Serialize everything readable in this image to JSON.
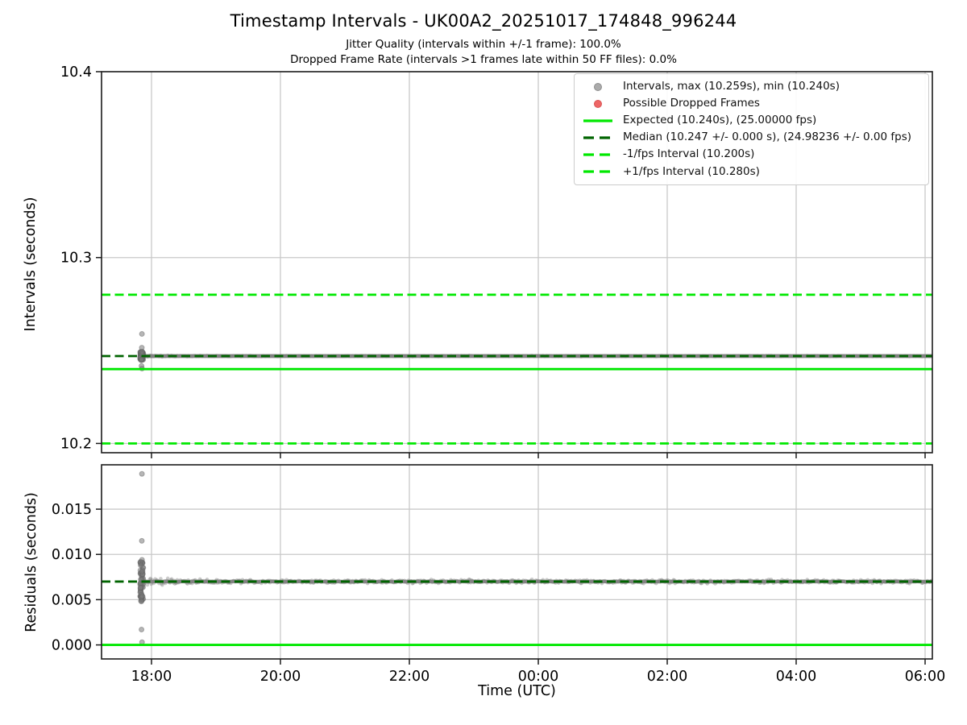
{
  "figure": {
    "title": "Timestamp Intervals - UK00A2_20251017_174848_996244",
    "subtitle1": "Jitter Quality (intervals within +/-1 frame): 100.0%",
    "subtitle2": "Dropped Frame Rate (intervals >1 frames late within 50 FF files): 0.0%"
  },
  "stats": {
    "jitter_quality_pct": 100.0,
    "dropped_frame_rate_pct": 0.0,
    "interval_max_s": 10.259,
    "interval_min_s": 10.24,
    "expected_interval_s": 10.24,
    "expected_fps": 25.0,
    "median_interval_s": 10.247,
    "median_fps": 24.98236,
    "minus_one_fps_interval_s": 10.2,
    "plus_one_fps_interval_s": 10.28
  },
  "colors": {
    "lime": "#00e800",
    "darkgreen": "#006400",
    "scatter_gray": "#808080",
    "dropped_red": "#ee6666",
    "grid": "#c9c9c9",
    "spine": "#1c1c1c",
    "text": "#000000"
  },
  "legend": {
    "entries": [
      {
        "label": "Intervals, max (10.259s), min (10.240s)",
        "style": "dot",
        "color": "#ababab",
        "edge": "#8d8d8d"
      },
      {
        "label": "Possible Dropped Frames",
        "style": "dot",
        "color": "#ee6666",
        "edge": "#d95555"
      },
      {
        "label": "Expected (10.240s), (25.00000 fps)",
        "style": "line",
        "color": "#00e800"
      },
      {
        "label": "Median (10.247 +/- 0.000 s), (24.98236 +/- 0.00 fps)",
        "style": "dashline",
        "color": "#006400"
      },
      {
        "label": "-1/fps Interval (10.200s)",
        "style": "dashline",
        "color": "#00e800"
      },
      {
        "label": "+1/fps Interval (10.280s)",
        "style": "dashline",
        "color": "#00e800"
      }
    ]
  },
  "scatter": {
    "expected_interval_s": 10.24,
    "band": {
      "t_start_h": 17.85,
      "t_end_h": 30.112,
      "median_residual_s": 0.007,
      "spread_s": 0.00026
    },
    "cluster_t_h": 17.848,
    "cluster_residuals_s": [
      0.0189,
      0.0115,
      0.0094,
      0.0054,
      0.0048,
      0.0017,
      0.0003
    ],
    "blob": {
      "r_min_s": 0.0048,
      "r_max_s": 0.0092,
      "n": 60,
      "t_spread_h": 0.05
    }
  },
  "chart_data": [
    {
      "type": "scatter",
      "panel": "intervals",
      "ylabel": "Intervals (seconds)",
      "ylim": [
        10.195,
        10.4
      ],
      "yticks": [
        10.2,
        10.3,
        10.4
      ],
      "ytick_labels": [
        "10.2",
        "10.3",
        "10.4"
      ],
      "xlim_hours": [
        17.225,
        30.1125
      ],
      "xticks_hours": [
        18,
        20,
        22,
        24,
        26,
        28,
        30
      ],
      "xtick_labels": [
        "18:00",
        "20:00",
        "22:00",
        "00:00",
        "02:00",
        "04:00",
        "06:00"
      ],
      "show_xtick_labels": false,
      "grid": true,
      "lines": [
        {
          "name": "expected",
          "value": 10.24,
          "style": "solid",
          "color": "#00e800"
        },
        {
          "name": "minus-1fps",
          "value": 10.2,
          "style": "dashed",
          "color": "#00e800"
        },
        {
          "name": "plus-1fps",
          "value": 10.28,
          "style": "dashed",
          "color": "#00e800"
        },
        {
          "name": "median",
          "value": 10.247,
          "style": "dashed",
          "color": "#006400"
        }
      ]
    },
    {
      "type": "scatter",
      "panel": "residuals",
      "ylabel": "Residuals (seconds)",
      "xlabel": "Time (UTC)",
      "ylim": [
        -0.00155,
        0.0199
      ],
      "yticks": [
        0.0,
        0.005,
        0.01,
        0.015
      ],
      "ytick_labels": [
        "0.000",
        "0.005",
        "0.010",
        "0.015"
      ],
      "xlim_hours": [
        17.225,
        30.1125
      ],
      "xticks_hours": [
        18,
        20,
        22,
        24,
        26,
        28,
        30
      ],
      "xtick_labels": [
        "18:00",
        "20:00",
        "22:00",
        "00:00",
        "02:00",
        "04:00",
        "06:00"
      ],
      "show_xtick_labels": true,
      "grid": true,
      "lines": [
        {
          "name": "zero",
          "value": 0.0,
          "style": "solid",
          "color": "#00e800"
        },
        {
          "name": "median-residual",
          "value": 0.007,
          "style": "dashed",
          "color": "#006400"
        }
      ]
    }
  ]
}
